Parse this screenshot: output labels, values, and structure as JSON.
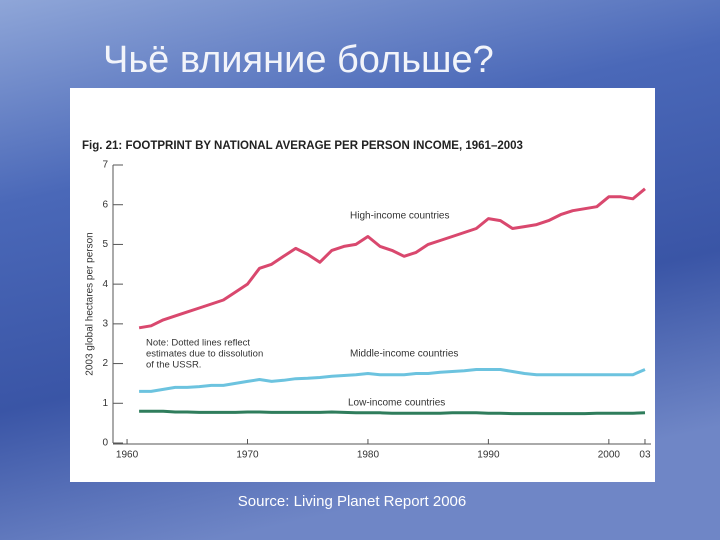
{
  "slide_title": "Чьё влияние больше?",
  "source": "Source: Living Planet Report 2006",
  "chart_data": {
    "type": "line",
    "title": "Fig. 21: FOOTPRINT BY NATIONAL AVERAGE PER PERSON INCOME, 1961–2003",
    "y_label": "2003 global hectares per person",
    "note": [
      "Note: Dotted lines reflect",
      "estimates due to dissolution",
      "of the USSR."
    ],
    "x": [
      1961,
      1962,
      1963,
      1964,
      1965,
      1966,
      1967,
      1968,
      1969,
      1970,
      1971,
      1972,
      1973,
      1974,
      1975,
      1976,
      1977,
      1978,
      1979,
      1980,
      1981,
      1982,
      1983,
      1984,
      1985,
      1986,
      1987,
      1988,
      1989,
      1990,
      1991,
      1992,
      1993,
      1994,
      1995,
      1996,
      1997,
      1998,
      1999,
      2000,
      2001,
      2002,
      2003
    ],
    "series": [
      {
        "name": "High-income countries",
        "color": "#d9486e",
        "values": [
          2.9,
          2.95,
          3.1,
          3.2,
          3.3,
          3.4,
          3.5,
          3.6,
          3.8,
          4.0,
          4.4,
          4.5,
          4.7,
          4.9,
          4.75,
          4.55,
          4.85,
          4.95,
          5.0,
          5.2,
          4.95,
          4.85,
          4.7,
          4.8,
          5.0,
          5.1,
          5.2,
          5.3,
          5.4,
          5.65,
          5.6,
          5.4,
          5.45,
          5.5,
          5.6,
          5.75,
          5.85,
          5.9,
          5.95,
          6.2,
          6.2,
          6.15,
          6.4
        ]
      },
      {
        "name": "Middle-income countries",
        "color": "#6cc3df",
        "values": [
          1.3,
          1.3,
          1.35,
          1.4,
          1.4,
          1.42,
          1.45,
          1.45,
          1.5,
          1.55,
          1.6,
          1.55,
          1.58,
          1.62,
          1.63,
          1.65,
          1.68,
          1.7,
          1.72,
          1.75,
          1.72,
          1.72,
          1.72,
          1.75,
          1.75,
          1.78,
          1.8,
          1.82,
          1.85,
          1.85,
          1.85,
          1.8,
          1.75,
          1.72,
          1.72,
          1.72,
          1.72,
          1.72,
          1.72,
          1.72,
          1.72,
          1.72,
          1.85
        ]
      },
      {
        "name": "Low-income countries",
        "color": "#2f7d5c",
        "values": [
          0.8,
          0.8,
          0.8,
          0.78,
          0.78,
          0.77,
          0.77,
          0.77,
          0.77,
          0.78,
          0.78,
          0.77,
          0.77,
          0.77,
          0.77,
          0.77,
          0.78,
          0.77,
          0.76,
          0.76,
          0.76,
          0.75,
          0.75,
          0.75,
          0.75,
          0.75,
          0.76,
          0.76,
          0.76,
          0.75,
          0.75,
          0.74,
          0.74,
          0.74,
          0.74,
          0.74,
          0.74,
          0.74,
          0.75,
          0.75,
          0.75,
          0.75,
          0.76
        ]
      }
    ],
    "xlim": [
      1959,
      2003.5
    ],
    "xticks": [
      1960,
      1970,
      1980,
      1990,
      2000,
      {
        "value": 2003,
        "label": "03"
      }
    ],
    "ylim": [
      0,
      7
    ],
    "yticks": [
      0,
      1,
      2,
      3,
      4,
      5,
      6,
      7
    ]
  }
}
